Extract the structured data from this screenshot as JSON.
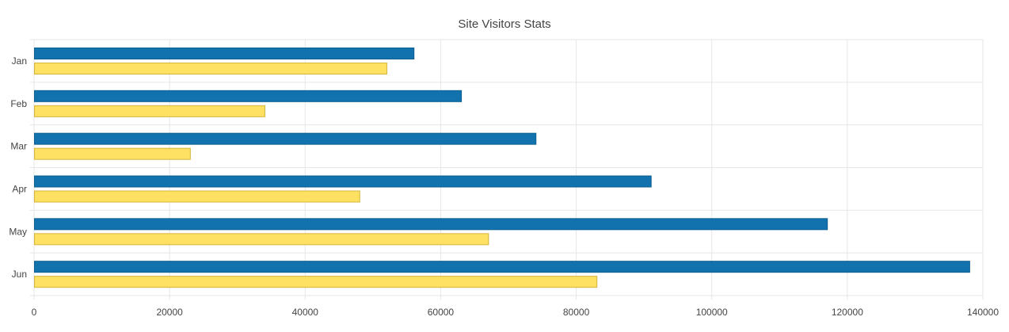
{
  "chart_data": {
    "type": "bar",
    "orientation": "horizontal",
    "title": "Site Visitors Stats",
    "xlabel": "",
    "ylabel": "",
    "categories": [
      "Jan",
      "Feb",
      "Mar",
      "Apr",
      "May",
      "Jun"
    ],
    "series": [
      {
        "values": [
          56000,
          63000,
          74000,
          91000,
          117000,
          138000
        ],
        "color": "#1172AE",
        "border": "#0E5F91"
      },
      {
        "values": [
          52000,
          34000,
          23000,
          48000,
          67000,
          83000
        ],
        "color": "#FEE062",
        "border": "#D4B43A"
      }
    ],
    "xlim": [
      0,
      140000
    ],
    "xticks": [
      "0",
      "20000",
      "40000",
      "60000",
      "80000",
      "100000",
      "120000",
      "140000"
    ],
    "grid": true,
    "legend": "none"
  }
}
